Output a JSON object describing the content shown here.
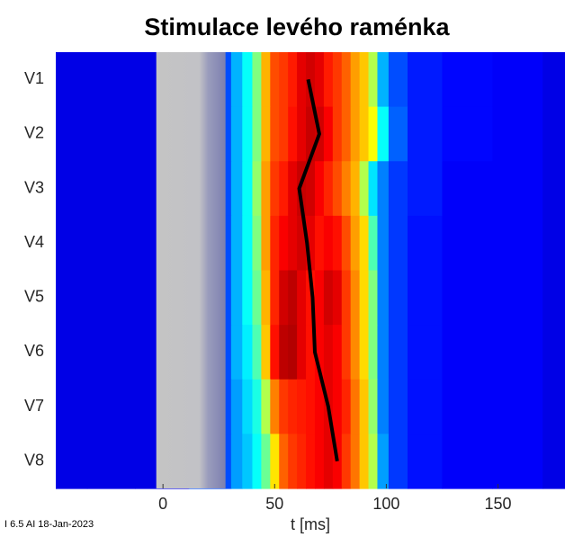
{
  "chart_data": {
    "type": "heatmap",
    "title": "Stimulace levého raménka",
    "xlabel": "t  [ms]",
    "footer": "I 6.5 AI 18-Jan-2023",
    "colormap": "jet",
    "zlim": [
      0,
      1
    ],
    "xlim": [
      -48,
      180
    ],
    "xticks": [
      0,
      50,
      100,
      150
    ],
    "x": [
      -48,
      -20,
      -5,
      28,
      33,
      38,
      42,
      46,
      50,
      54,
      58,
      62,
      66,
      70,
      74,
      78,
      82,
      86,
      90,
      94,
      98,
      104,
      115,
      135,
      160,
      180
    ],
    "blank_interval": [
      -3,
      28
    ],
    "series": [
      {
        "name": "V1",
        "values": [
          0.1,
          0.1,
          0.1,
          0.2,
          0.3,
          0.38,
          0.5,
          0.7,
          0.8,
          0.82,
          0.85,
          0.9,
          0.92,
          0.9,
          0.85,
          0.82,
          0.78,
          0.72,
          0.68,
          0.55,
          0.3,
          0.2,
          0.15,
          0.13,
          0.12,
          0.1
        ]
      },
      {
        "name": "V2",
        "values": [
          0.1,
          0.1,
          0.1,
          0.2,
          0.3,
          0.38,
          0.5,
          0.7,
          0.8,
          0.82,
          0.86,
          0.9,
          0.93,
          0.92,
          0.88,
          0.82,
          0.78,
          0.72,
          0.68,
          0.62,
          0.38,
          0.22,
          0.15,
          0.13,
          0.12,
          0.1
        ]
      },
      {
        "name": "V3",
        "values": [
          0.1,
          0.1,
          0.1,
          0.2,
          0.3,
          0.38,
          0.52,
          0.72,
          0.82,
          0.85,
          0.9,
          0.93,
          0.92,
          0.88,
          0.84,
          0.8,
          0.75,
          0.7,
          0.55,
          0.35,
          0.25,
          0.18,
          0.15,
          0.12,
          0.12,
          0.1
        ]
      },
      {
        "name": "V4",
        "values": [
          0.1,
          0.1,
          0.1,
          0.2,
          0.3,
          0.38,
          0.5,
          0.72,
          0.84,
          0.88,
          0.9,
          0.92,
          0.9,
          0.86,
          0.88,
          0.86,
          0.8,
          0.72,
          0.66,
          0.45,
          0.25,
          0.18,
          0.14,
          0.12,
          0.12,
          0.1
        ]
      },
      {
        "name": "V5",
        "values": [
          0.1,
          0.1,
          0.1,
          0.2,
          0.3,
          0.38,
          0.48,
          0.7,
          0.84,
          0.92,
          0.94,
          0.9,
          0.86,
          0.88,
          0.92,
          0.9,
          0.82,
          0.74,
          0.66,
          0.5,
          0.25,
          0.18,
          0.14,
          0.12,
          0.12,
          0.1
        ]
      },
      {
        "name": "V6",
        "values": [
          0.1,
          0.1,
          0.1,
          0.2,
          0.3,
          0.36,
          0.45,
          0.68,
          0.86,
          0.94,
          0.95,
          0.9,
          0.86,
          0.88,
          0.9,
          0.88,
          0.82,
          0.74,
          0.66,
          0.5,
          0.25,
          0.18,
          0.14,
          0.12,
          0.12,
          0.1
        ]
      },
      {
        "name": "V7",
        "values": [
          0.1,
          0.1,
          0.1,
          0.2,
          0.28,
          0.34,
          0.4,
          0.55,
          0.75,
          0.82,
          0.84,
          0.85,
          0.86,
          0.88,
          0.9,
          0.88,
          0.84,
          0.76,
          0.68,
          0.52,
          0.25,
          0.18,
          0.14,
          0.12,
          0.12,
          0.1
        ]
      },
      {
        "name": "V8",
        "values": [
          0.1,
          0.1,
          0.1,
          0.2,
          0.28,
          0.32,
          0.38,
          0.48,
          0.65,
          0.78,
          0.82,
          0.84,
          0.86,
          0.88,
          0.9,
          0.88,
          0.82,
          0.76,
          0.68,
          0.55,
          0.28,
          0.18,
          0.14,
          0.12,
          0.12,
          0.1
        ]
      }
    ],
    "activation_line": {
      "color": "#000000",
      "values": [
        65,
        70,
        61,
        64.5,
        67,
        68,
        74,
        78
      ]
    }
  }
}
